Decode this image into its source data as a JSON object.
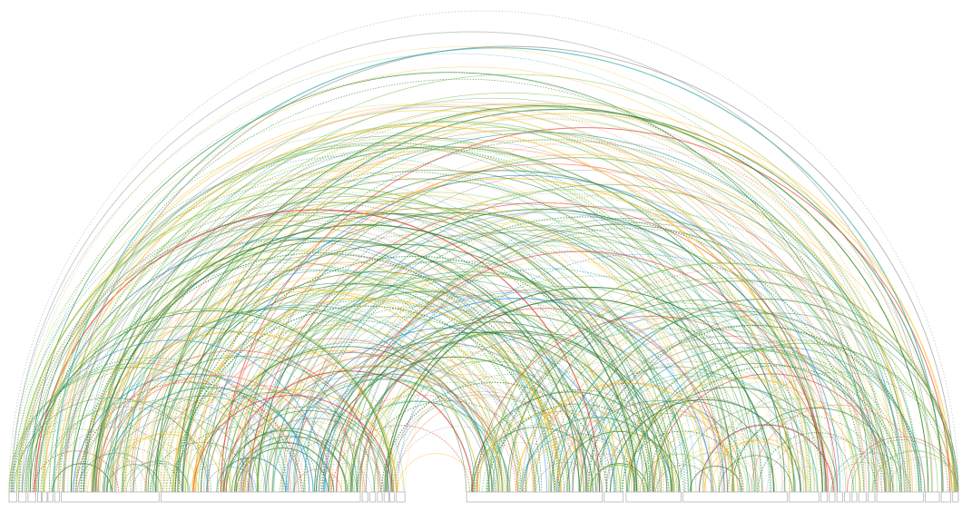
{
  "segments": [
    {
      "label": "",
      "from": 0.0,
      "to": 0.008
    },
    {
      "label": "",
      "from": 0.01,
      "to": 0.018
    },
    {
      "label": "",
      "from": 0.02,
      "to": 0.028
    },
    {
      "label": "",
      "from": 0.03,
      "to": 0.034
    },
    {
      "label": "",
      "from": 0.035,
      "to": 0.04
    },
    {
      "label": "",
      "from": 0.041,
      "to": 0.046
    },
    {
      "label": "",
      "from": 0.048,
      "to": 0.053
    },
    {
      "label": "",
      "from": 0.055,
      "to": 0.158
    },
    {
      "label": "",
      "from": 0.16,
      "to": 0.37
    },
    {
      "label": "",
      "from": 0.372,
      "to": 0.378
    },
    {
      "label": "",
      "from": 0.38,
      "to": 0.386
    },
    {
      "label": "",
      "from": 0.388,
      "to": 0.393
    },
    {
      "label": "",
      "from": 0.395,
      "to": 0.4
    },
    {
      "label": "",
      "from": 0.401,
      "to": 0.406
    },
    {
      "label": "",
      "from": 0.408,
      "to": 0.417
    },
    {
      "label": "",
      "from": 0.482,
      "to": 0.625
    },
    {
      "label": "",
      "from": 0.627,
      "to": 0.647
    },
    {
      "label": "",
      "from": 0.65,
      "to": 0.708
    },
    {
      "label": "",
      "from": 0.71,
      "to": 0.82
    },
    {
      "label": "",
      "from": 0.822,
      "to": 0.853
    },
    {
      "label": "",
      "from": 0.855,
      "to": 0.862
    },
    {
      "label": "",
      "from": 0.864,
      "to": 0.87
    },
    {
      "label": "",
      "from": 0.872,
      "to": 0.878
    },
    {
      "label": "",
      "from": 0.88,
      "to": 0.886
    },
    {
      "label": "",
      "from": 0.888,
      "to": 0.893
    },
    {
      "label": "",
      "from": 0.895,
      "to": 0.903
    },
    {
      "label": "",
      "from": 0.905,
      "to": 0.912
    },
    {
      "label": "",
      "from": 0.914,
      "to": 0.963
    },
    {
      "label": "",
      "from": 0.965,
      "to": 0.98
    },
    {
      "label": "",
      "from": 0.982,
      "to": 0.992
    },
    {
      "label": "",
      "from": 0.994,
      "to": 1.0
    }
  ],
  "palette": {
    "green": "#2e7d32",
    "light_green": "#8bc34a",
    "yellow": "#fbc02d",
    "blue": "#1e88e5",
    "teal": "#26a69a",
    "red": "#e53935",
    "salmon": "#ff8a65",
    "gray": "#9e9e9e"
  },
  "arc_color_weights": [
    {
      "color": "green",
      "weight": 5
    },
    {
      "color": "light_green",
      "weight": 3
    },
    {
      "color": "yellow",
      "weight": 2
    },
    {
      "color": "teal",
      "weight": 2
    },
    {
      "color": "blue",
      "weight": 1
    },
    {
      "color": "salmon",
      "weight": 1
    },
    {
      "color": "red",
      "weight": 1
    },
    {
      "color": "gray",
      "weight": 1
    }
  ],
  "arc_count": 420
}
